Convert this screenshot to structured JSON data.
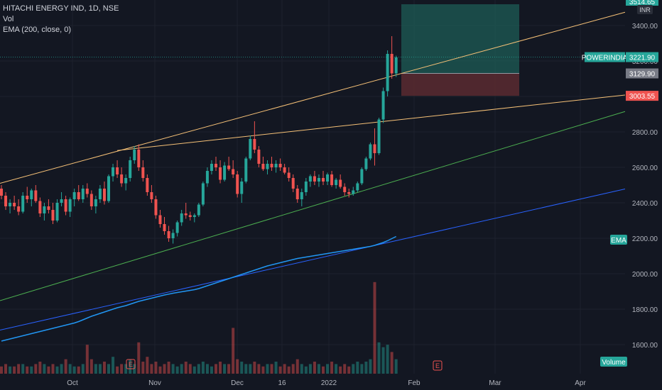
{
  "header": {
    "symbol_line": "HITACHI ENERGY IND, 1D, NSE",
    "vol_label": "Vol",
    "ema_label": "EMA (200, close, 0)"
  },
  "currency": "INR",
  "price_tags": {
    "top_clipped": "3514.65",
    "symbol_name": "POWERINDIA",
    "last": "3221.90",
    "entry": "3129.90",
    "stop": "3003.55",
    "ema_badge": "EMA",
    "volume_badge": "Volume"
  },
  "colors": {
    "background": "#131722",
    "up": "#26a69a",
    "down": "#ef5350",
    "ema": "#2196f3",
    "trendline_orange": "#f6c177",
    "trendline_green": "#4caf50",
    "trendline_blue": "#2962ff",
    "profit_zone": "#1e5c55",
    "loss_zone": "#5a2a30"
  },
  "chart_data": {
    "type": "candlestick",
    "title": "HITACHI ENERGY IND, 1D, NSE",
    "ylim": [
      1500,
      3560
    ],
    "y_ticks": [
      1600,
      1800,
      2000,
      2200,
      2400,
      2600,
      2800,
      3000,
      3200,
      3400
    ],
    "y_tick_labels": [
      "1600.00",
      "1800.00",
      "2000.00",
      "2200.00",
      "2400.00",
      "2600.00",
      "2800.00",
      "3000.00",
      "3200.00",
      "3400.00"
    ],
    "x_ticks": [
      "Oct",
      "Nov",
      "Dec",
      "16",
      "2022",
      "Feb",
      "Mar",
      "Apr"
    ],
    "annotations": [
      "E",
      "E"
    ],
    "series": [
      {
        "name": "Price",
        "ohlc": [
          [
            2480,
            2500,
            2420,
            2440
          ],
          [
            2440,
            2460,
            2360,
            2380
          ],
          [
            2380,
            2420,
            2340,
            2400
          ],
          [
            2400,
            2440,
            2360,
            2380
          ],
          [
            2380,
            2420,
            2330,
            2350
          ],
          [
            2350,
            2460,
            2340,
            2440
          ],
          [
            2440,
            2490,
            2400,
            2420
          ],
          [
            2420,
            2480,
            2380,
            2470
          ],
          [
            2470,
            2500,
            2400,
            2410
          ],
          [
            2410,
            2430,
            2320,
            2340
          ],
          [
            2340,
            2400,
            2300,
            2380
          ],
          [
            2380,
            2420,
            2340,
            2360
          ],
          [
            2360,
            2400,
            2280,
            2300
          ],
          [
            2300,
            2420,
            2290,
            2400
          ],
          [
            2400,
            2460,
            2380,
            2420
          ],
          [
            2420,
            2440,
            2330,
            2350
          ],
          [
            2350,
            2430,
            2320,
            2420
          ],
          [
            2420,
            2480,
            2380,
            2460
          ],
          [
            2460,
            2500,
            2410,
            2420
          ],
          [
            2420,
            2500,
            2400,
            2480
          ],
          [
            2480,
            2510,
            2430,
            2450
          ],
          [
            2450,
            2470,
            2360,
            2380
          ],
          [
            2380,
            2440,
            2340,
            2420
          ],
          [
            2420,
            2500,
            2400,
            2480
          ],
          [
            2480,
            2520,
            2390,
            2410
          ],
          [
            2410,
            2560,
            2400,
            2550
          ],
          [
            2550,
            2620,
            2520,
            2600
          ],
          [
            2600,
            2640,
            2540,
            2560
          ],
          [
            2560,
            2600,
            2490,
            2510
          ],
          [
            2510,
            2560,
            2470,
            2540
          ],
          [
            2540,
            2660,
            2520,
            2640
          ],
          [
            2640,
            2720,
            2620,
            2700
          ],
          [
            2700,
            2730,
            2580,
            2600
          ],
          [
            2600,
            2640,
            2520,
            2540
          ],
          [
            2540,
            2560,
            2440,
            2460
          ],
          [
            2460,
            2500,
            2400,
            2420
          ],
          [
            2420,
            2440,
            2310,
            2330
          ],
          [
            2330,
            2360,
            2260,
            2280
          ],
          [
            2280,
            2320,
            2220,
            2240
          ],
          [
            2240,
            2270,
            2180,
            2200
          ],
          [
            2200,
            2250,
            2170,
            2230
          ],
          [
            2230,
            2300,
            2210,
            2290
          ],
          [
            2290,
            2360,
            2270,
            2340
          ],
          [
            2340,
            2400,
            2310,
            2330
          ],
          [
            2330,
            2350,
            2300,
            2320
          ],
          [
            2320,
            2340,
            2290,
            2330
          ],
          [
            2330,
            2400,
            2320,
            2390
          ],
          [
            2390,
            2520,
            2380,
            2510
          ],
          [
            2510,
            2600,
            2490,
            2580
          ],
          [
            2580,
            2640,
            2560,
            2620
          ],
          [
            2620,
            2660,
            2580,
            2600
          ],
          [
            2600,
            2640,
            2510,
            2530
          ],
          [
            2530,
            2630,
            2520,
            2610
          ],
          [
            2610,
            2660,
            2580,
            2590
          ],
          [
            2590,
            2640,
            2540,
            2560
          ],
          [
            2560,
            2580,
            2430,
            2450
          ],
          [
            2450,
            2540,
            2400,
            2520
          ],
          [
            2520,
            2660,
            2510,
            2650
          ],
          [
            2650,
            2780,
            2640,
            2760
          ],
          [
            2760,
            2860,
            2680,
            2700
          ],
          [
            2700,
            2720,
            2600,
            2620
          ],
          [
            2620,
            2660,
            2580,
            2590
          ],
          [
            2590,
            2640,
            2560,
            2620
          ],
          [
            2620,
            2660,
            2580,
            2600
          ],
          [
            2600,
            2640,
            2570,
            2620
          ],
          [
            2620,
            2650,
            2580,
            2600
          ],
          [
            2600,
            2620,
            2560,
            2570
          ],
          [
            2570,
            2600,
            2520,
            2540
          ],
          [
            2540,
            2560,
            2460,
            2480
          ],
          [
            2480,
            2500,
            2400,
            2420
          ],
          [
            2420,
            2480,
            2380,
            2460
          ],
          [
            2460,
            2540,
            2440,
            2520
          ],
          [
            2520,
            2560,
            2490,
            2550
          ],
          [
            2550,
            2580,
            2500,
            2520
          ],
          [
            2520,
            2560,
            2490,
            2540
          ],
          [
            2540,
            2580,
            2500,
            2520
          ],
          [
            2520,
            2570,
            2500,
            2560
          ],
          [
            2560,
            2580,
            2490,
            2500
          ],
          [
            2500,
            2540,
            2480,
            2530
          ],
          [
            2530,
            2560,
            2480,
            2490
          ],
          [
            2490,
            2510,
            2440,
            2460
          ],
          [
            2460,
            2480,
            2430,
            2450
          ],
          [
            2450,
            2490,
            2440,
            2470
          ],
          [
            2470,
            2520,
            2460,
            2510
          ],
          [
            2510,
            2600,
            2500,
            2590
          ],
          [
            2590,
            2660,
            2580,
            2650
          ],
          [
            2650,
            2740,
            2640,
            2730
          ],
          [
            2730,
            2820,
            2610,
            2680
          ],
          [
            2680,
            2880,
            2670,
            2870
          ],
          [
            2870,
            3050,
            2850,
            3030
          ],
          [
            3030,
            3260,
            3000,
            3240
          ],
          [
            3240,
            3340,
            3100,
            3130
          ],
          [
            3130,
            3230,
            3110,
            3220
          ]
        ]
      },
      {
        "name": "EMA (200, close, 0)",
        "values": [
          1620,
          1626,
          1632,
          1638,
          1644,
          1650,
          1656,
          1662,
          1668,
          1674,
          1680,
          1686,
          1692,
          1698,
          1704,
          1710,
          1716,
          1722,
          1730,
          1740,
          1750,
          1760,
          1768,
          1776,
          1784,
          1792,
          1800,
          1808,
          1814,
          1820,
          1828,
          1836,
          1844,
          1850,
          1856,
          1862,
          1868,
          1874,
          1880,
          1885,
          1890,
          1894,
          1898,
          1902,
          1906,
          1910,
          1916,
          1924,
          1932,
          1940,
          1948,
          1956,
          1964,
          1972,
          1980,
          1988,
          1996,
          2004,
          2012,
          2020,
          2028,
          2036,
          2044,
          2050,
          2056,
          2062,
          2068,
          2074,
          2080,
          2086,
          2090,
          2094,
          2098,
          2102,
          2106,
          2110,
          2114,
          2118,
          2122,
          2126,
          2130,
          2134,
          2138,
          2142,
          2146,
          2150,
          2154,
          2160,
          2168,
          2176,
          2186,
          2198,
          2210
        ]
      },
      {
        "name": "Vol",
        "values": [
          3,
          4,
          3,
          3,
          4,
          4,
          3,
          3,
          4,
          5,
          4,
          3,
          4,
          3,
          4,
          6,
          4,
          3,
          3,
          4,
          12,
          6,
          4,
          4,
          5,
          4,
          7,
          3,
          4,
          4,
          6,
          4,
          13,
          5,
          7,
          4,
          5,
          3,
          4,
          5,
          4,
          3,
          4,
          5,
          4,
          3,
          4,
          5,
          4,
          3,
          4,
          5,
          4,
          4,
          19,
          6,
          5,
          4,
          4,
          5,
          4,
          3,
          4,
          4,
          5,
          3,
          4,
          3,
          4,
          6,
          4,
          3,
          4,
          5,
          4,
          3,
          4,
          5,
          4,
          3,
          4,
          3,
          4,
          5,
          4,
          5,
          6,
          38,
          13,
          11,
          12,
          9,
          6
        ]
      }
    ]
  }
}
